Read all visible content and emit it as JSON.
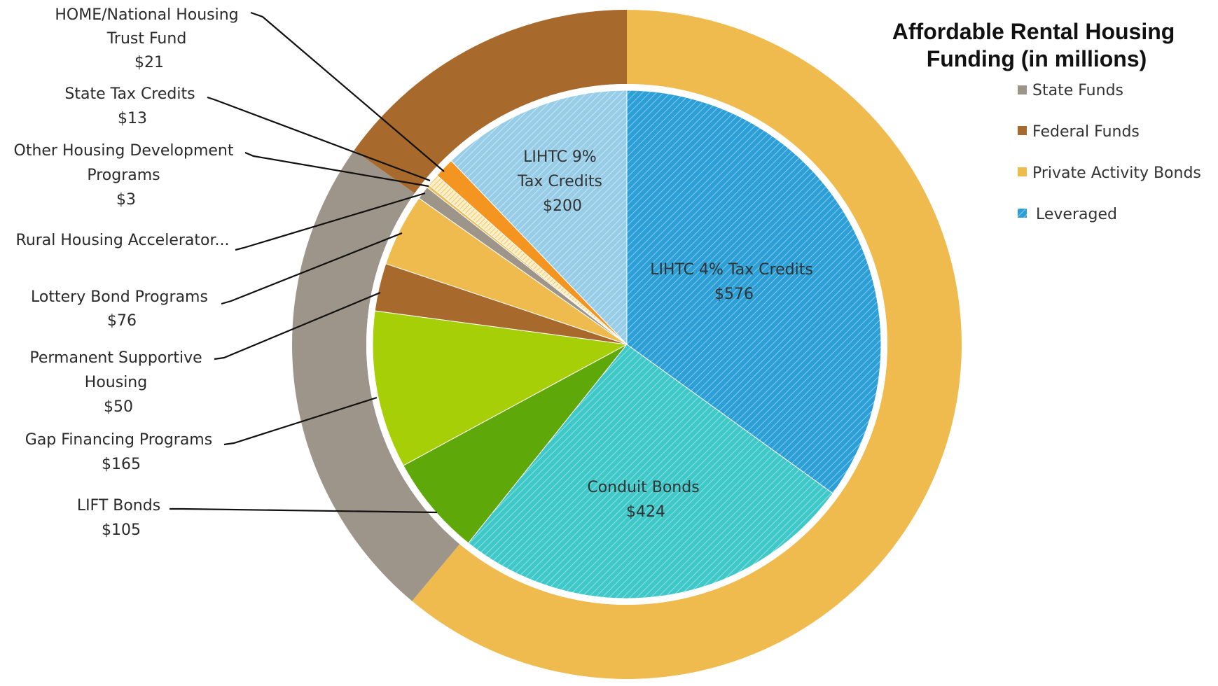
{
  "chart_data": {
    "type": "pie",
    "title": "Affordable Rental Housing Funding (in millions)",
    "title_lines": [
      "Affordable Rental Housing",
      "Funding (in millions)"
    ],
    "legend": [
      {
        "key": "state",
        "label": "State Funds",
        "color": "#9e958a"
      },
      {
        "key": "federal",
        "label": "Federal Funds",
        "color": "#a8692c"
      },
      {
        "key": "pab",
        "label": "Private Activity Bonds",
        "color": "#f0bb4e"
      },
      {
        "key": "leveraged",
        "label": "Leveraged",
        "color": "#2b9fd6",
        "hatched": true
      }
    ],
    "legend_placement": "top-right",
    "inner_slices": [
      {
        "label": "LIHTC 4% Tax Credits",
        "value": 576,
        "value_label": "$576",
        "color": "#2b9fd6",
        "hatched": true,
        "inside_label": true
      },
      {
        "label": "Conduit Bonds",
        "value": 424,
        "value_label": "$424",
        "color": "#3fc8c8",
        "hatched": true,
        "inside_label": true
      },
      {
        "label": "LIFT Bonds",
        "value": 105,
        "value_label": "$105",
        "color": "#5ea80a"
      },
      {
        "label": "Gap Financing Programs",
        "value": 165,
        "value_label": "$165",
        "color": "#a6cf08"
      },
      {
        "label": "Permanent Supportive Housing",
        "value": 50,
        "value_label": "$50",
        "color": "#a8692c"
      },
      {
        "label": "Lottery Bond Programs",
        "value": 76,
        "value_label": "$76",
        "color": "#f0bb4e"
      },
      {
        "label": "Rural Housing Accelerator...",
        "value": 14,
        "value_label": "",
        "color": "#9e958a"
      },
      {
        "label": "Other Housing Development Programs",
        "value": 3,
        "value_label": "$3",
        "color": "#f0bb4e"
      },
      {
        "label": "State Tax Credits",
        "value": 13,
        "value_label": "$13",
        "color": "#fdf0c8",
        "hatched": true
      },
      {
        "label": "HOME/National Housing Trust Fund",
        "value": 21,
        "value_label": "$21",
        "color": "#f39520"
      },
      {
        "label": "LIHTC 9% Tax Credits",
        "value": 200,
        "value_label": "$200",
        "color": "#98cde8",
        "hatched": true,
        "inside_label": true
      }
    ],
    "outer_ring": [
      {
        "group": "Private Activity Bonds",
        "value": 1000,
        "color": "#f0bb4e"
      },
      {
        "group": "State Funds",
        "value": 389,
        "color": "#9e958a"
      },
      {
        "group": "Federal Funds",
        "value": 248,
        "color": "#a8692c"
      }
    ],
    "external_labels": [
      {
        "lines": [
          "HOME/National Housing",
          "Trust Fund",
          "$21"
        ]
      },
      {
        "lines": [
          "State Tax Credits",
          "$13"
        ]
      },
      {
        "lines": [
          "Other Housing Development",
          "Programs",
          "$3"
        ]
      },
      {
        "lines": [
          "Rural Housing Accelerator..."
        ]
      },
      {
        "lines": [
          "Lottery Bond Programs",
          "$76"
        ]
      },
      {
        "lines": [
          "Permanent Supportive",
          "Housing",
          "$50"
        ]
      },
      {
        "lines": [
          "Gap Financing Programs",
          "$165"
        ]
      },
      {
        "lines": [
          "LIFT Bonds",
          "$105"
        ]
      }
    ],
    "internal_labels": [
      {
        "lines": [
          "LIHTC 4% Tax Credits",
          "$576"
        ]
      },
      {
        "lines": [
          "Conduit Bonds",
          "$424"
        ]
      },
      {
        "lines": [
          "LIHTC 9%",
          "Tax Credits",
          "$200"
        ]
      }
    ]
  }
}
